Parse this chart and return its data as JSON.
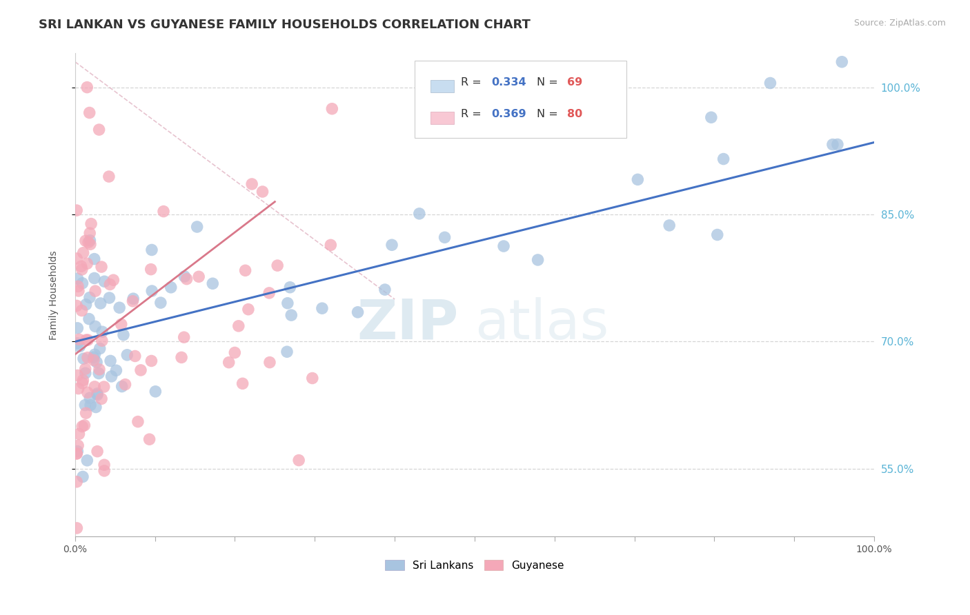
{
  "title": "SRI LANKAN VS GUYANESE FAMILY HOUSEHOLDS CORRELATION CHART",
  "source": "Source: ZipAtlas.com",
  "ylabel": "Family Households",
  "y_ticks": [
    55.0,
    70.0,
    85.0,
    100.0
  ],
  "x_range": [
    0.0,
    100.0
  ],
  "y_range": [
    47.0,
    104.0
  ],
  "sri_lankan_R": "0.334",
  "sri_lankan_N": "69",
  "guyanese_R": "0.369",
  "guyanese_N": "80",
  "sri_lankan_color": "#a8c4e0",
  "guyanese_color": "#f4a8b8",
  "sri_lankan_line_color": "#4472c4",
  "guyanese_line_color": "#d9788a",
  "legend_box_color_srilankan": "#c8ddf0",
  "legend_box_color_guyanese": "#f8c8d4",
  "watermark_zip": "ZIP",
  "watermark_atlas": "atlas",
  "grid_color": "#cccccc",
  "background_color": "#ffffff",
  "title_fontsize": 13,
  "label_fontsize": 10,
  "tick_color": "#aaaaaa",
  "right_tick_color": "#5ab4d6"
}
